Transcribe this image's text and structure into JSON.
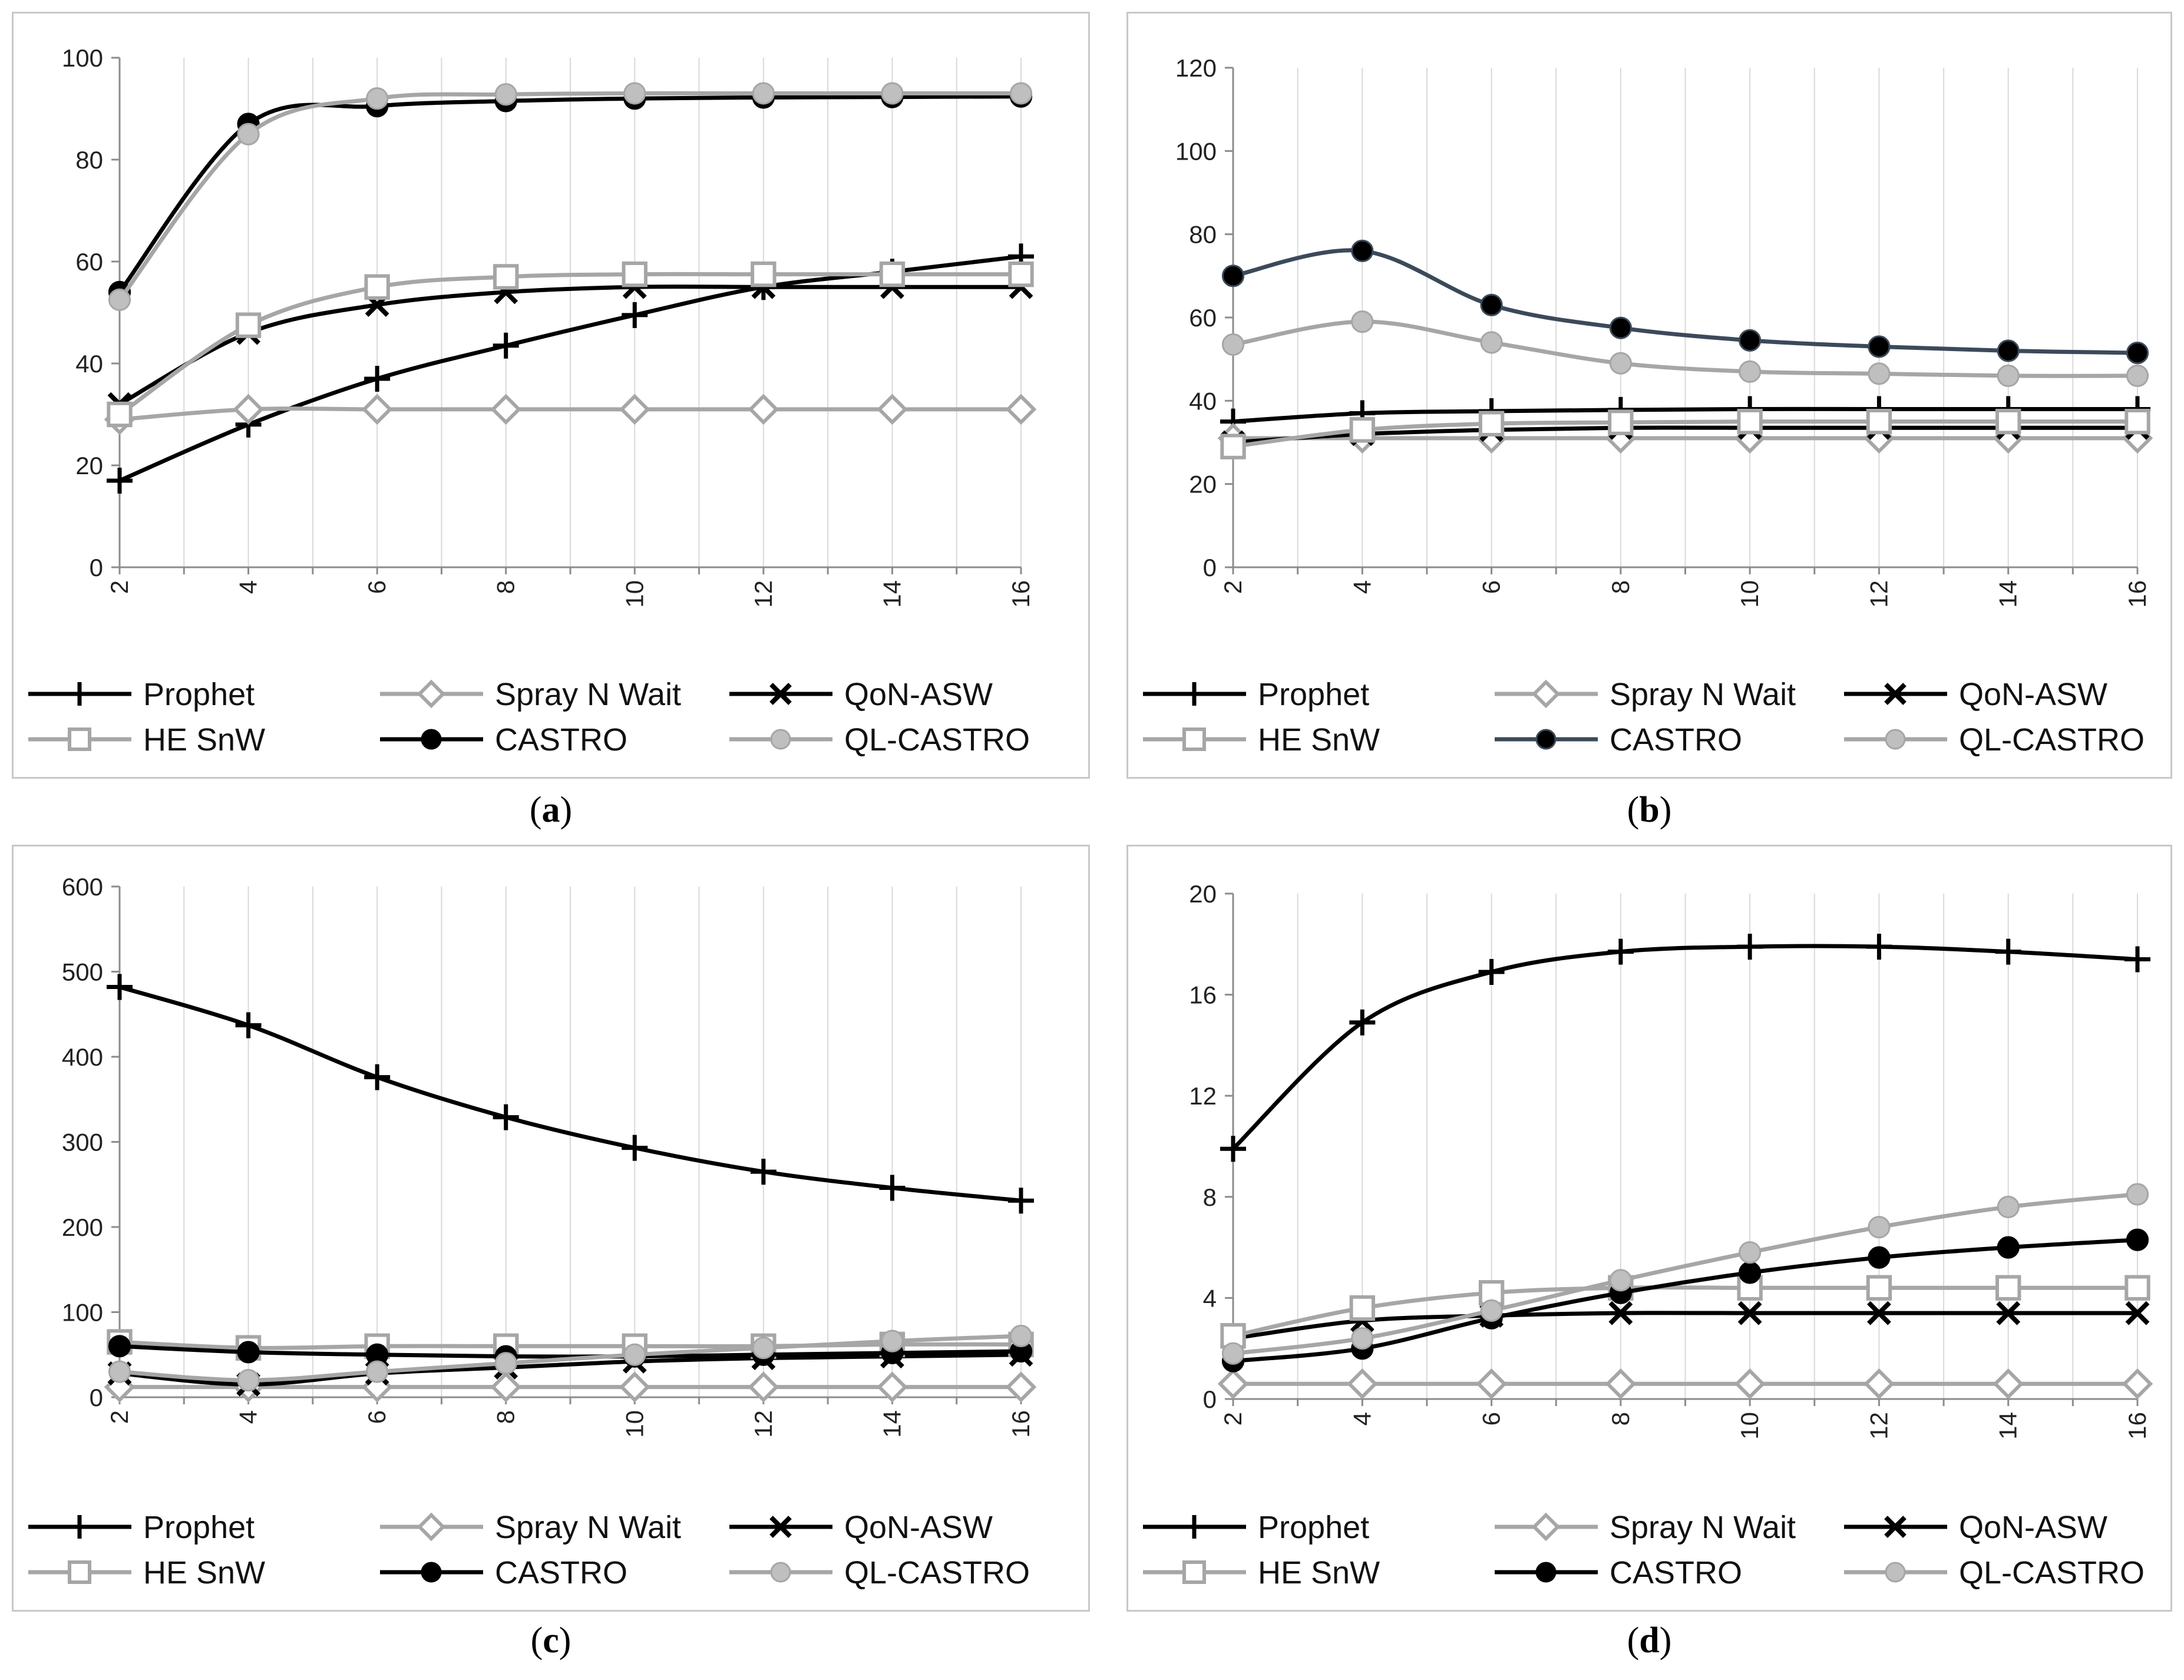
{
  "legend_items": [
    {
      "key": "prophet",
      "label": "Prophet"
    },
    {
      "key": "spray",
      "label": "Spray N Wait"
    },
    {
      "key": "qon",
      "label": "QoN-ASW"
    },
    {
      "key": "he",
      "label": "HE SnW"
    },
    {
      "key": "castro",
      "label": "CASTRO"
    },
    {
      "key": "qlcastro",
      "label": "QL-CASTRO"
    }
  ],
  "series_styles": {
    "prophet": {
      "color": "#000000",
      "marker": "plus",
      "fill": "#000000"
    },
    "spray": {
      "color": "#a6a6a6",
      "marker": "diamond",
      "fill": "#ffffff"
    },
    "qon": {
      "color": "#000000",
      "marker": "cross",
      "fill": "#000000"
    },
    "he": {
      "color": "#a6a6a6",
      "marker": "square",
      "fill": "#ffffff"
    },
    "castro": {
      "color": "#000000",
      "marker": "circle",
      "fill": "#000000"
    },
    "qlcastro": {
      "color": "#a6a6a6",
      "marker": "circle",
      "fill": "#bfbfbf"
    }
  },
  "chart_data": [
    {
      "id": "a",
      "caption": "(a)",
      "type": "line",
      "x": [
        2,
        4,
        6,
        8,
        10,
        12,
        14,
        16
      ],
      "ylim": [
        0,
        100
      ],
      "yticks": [
        0,
        20,
        40,
        60,
        80,
        100
      ],
      "grid": "vertical",
      "legend_position": "bottom",
      "series": [
        {
          "key": "prophet",
          "name": "Prophet",
          "values": [
            17,
            28,
            37,
            43.5,
            49.5,
            55,
            58,
            61
          ]
        },
        {
          "key": "spray",
          "name": "Spray N Wait",
          "values": [
            29,
            31,
            31,
            31,
            31,
            31,
            31,
            31
          ]
        },
        {
          "key": "qon",
          "name": "QoN-ASW",
          "values": [
            32,
            46,
            51.5,
            54,
            55,
            55,
            55,
            55
          ]
        },
        {
          "key": "he",
          "name": "HE SnW",
          "values": [
            30,
            47.5,
            55,
            57,
            57.5,
            57.5,
            57.5,
            57.5
          ]
        },
        {
          "key": "castro",
          "name": "CASTRO",
          "values": [
            54,
            87,
            90.5,
            91.5,
            92,
            92.2,
            92.3,
            92.4
          ]
        },
        {
          "key": "qlcastro",
          "name": "QL-CASTRO",
          "values": [
            52.5,
            85,
            92,
            92.8,
            93,
            93,
            93,
            93
          ]
        }
      ]
    },
    {
      "id": "b",
      "caption": "(b)",
      "type": "line",
      "x": [
        2,
        4,
        6,
        8,
        10,
        12,
        14,
        16
      ],
      "ylim": [
        0,
        120
      ],
      "yticks": [
        0,
        20,
        40,
        60,
        80,
        100,
        120
      ],
      "grid": "vertical",
      "legend_position": "bottom",
      "series": [
        {
          "key": "prophet",
          "name": "Prophet",
          "values": [
            35,
            37,
            37.5,
            37.8,
            38,
            38,
            38,
            38
          ]
        },
        {
          "key": "spray",
          "name": "Spray N Wait",
          "values": [
            31,
            31,
            31,
            31,
            31,
            31,
            31,
            31
          ]
        },
        {
          "key": "qon",
          "name": "QoN-ASW",
          "values": [
            30,
            32,
            33,
            33.5,
            33.5,
            33.5,
            33.5,
            33.5
          ]
        },
        {
          "key": "he",
          "name": "HE SnW",
          "values": [
            29,
            33,
            34.5,
            34.8,
            35,
            35,
            35,
            35
          ]
        },
        {
          "key": "castro",
          "name": "CASTRO",
          "values": [
            70,
            76,
            63,
            57.5,
            54.5,
            53,
            52,
            51.5
          ],
          "color": "#3b4a5a"
        },
        {
          "key": "qlcastro",
          "name": "QL-CASTRO",
          "values": [
            53.5,
            59,
            54,
            49,
            47,
            46.5,
            46,
            46
          ]
        }
      ]
    },
    {
      "id": "c",
      "caption": "(c)",
      "type": "line",
      "x": [
        2,
        4,
        6,
        8,
        10,
        12,
        14,
        16
      ],
      "ylim": [
        0,
        600
      ],
      "yticks": [
        0,
        100,
        200,
        300,
        400,
        500,
        600
      ],
      "grid": "vertical",
      "legend_position": "bottom",
      "series": [
        {
          "key": "prophet",
          "name": "Prophet",
          "values": [
            482,
            437,
            376,
            329,
            293,
            265,
            246,
            231
          ]
        },
        {
          "key": "spray",
          "name": "Spray N Wait",
          "values": [
            12,
            12,
            12,
            12,
            12,
            12,
            12,
            12
          ]
        },
        {
          "key": "qon",
          "name": "QoN-ASW",
          "values": [
            28,
            15,
            28,
            35,
            42,
            46,
            48,
            50
          ]
        },
        {
          "key": "he",
          "name": "HE SnW",
          "values": [
            65,
            58,
            60,
            60,
            60,
            60,
            62,
            62
          ]
        },
        {
          "key": "castro",
          "name": "CASTRO",
          "values": [
            60,
            53,
            50,
            48,
            48,
            50,
            52,
            54
          ]
        },
        {
          "key": "qlcastro",
          "name": "QL-CASTRO",
          "values": [
            30,
            20,
            30,
            40,
            50,
            58,
            66,
            72
          ]
        }
      ]
    },
    {
      "id": "d",
      "caption": "(d)",
      "type": "line",
      "x": [
        2,
        4,
        6,
        8,
        10,
        12,
        14,
        16
      ],
      "ylim": [
        0,
        20
      ],
      "yticks": [
        0,
        4,
        8,
        12,
        16,
        20
      ],
      "grid": "vertical",
      "legend_position": "bottom",
      "series": [
        {
          "key": "prophet",
          "name": "Prophet",
          "values": [
            9.9,
            14.9,
            16.9,
            17.7,
            17.9,
            17.9,
            17.7,
            17.4
          ]
        },
        {
          "key": "spray",
          "name": "Spray N Wait",
          "values": [
            0.6,
            0.6,
            0.6,
            0.6,
            0.6,
            0.6,
            0.6,
            0.6
          ]
        },
        {
          "key": "qon",
          "name": "QoN-ASW",
          "values": [
            2.4,
            3.1,
            3.3,
            3.4,
            3.4,
            3.4,
            3.4,
            3.4
          ]
        },
        {
          "key": "he",
          "name": "HE SnW",
          "values": [
            2.5,
            3.6,
            4.2,
            4.4,
            4.4,
            4.4,
            4.4,
            4.4
          ]
        },
        {
          "key": "castro",
          "name": "CASTRO",
          "values": [
            1.5,
            2.0,
            3.2,
            4.2,
            5.0,
            5.6,
            6.0,
            6.3
          ]
        },
        {
          "key": "qlcastro",
          "name": "QL-CASTRO",
          "values": [
            1.8,
            2.4,
            3.5,
            4.7,
            5.8,
            6.8,
            7.6,
            8.1
          ]
        }
      ]
    }
  ]
}
